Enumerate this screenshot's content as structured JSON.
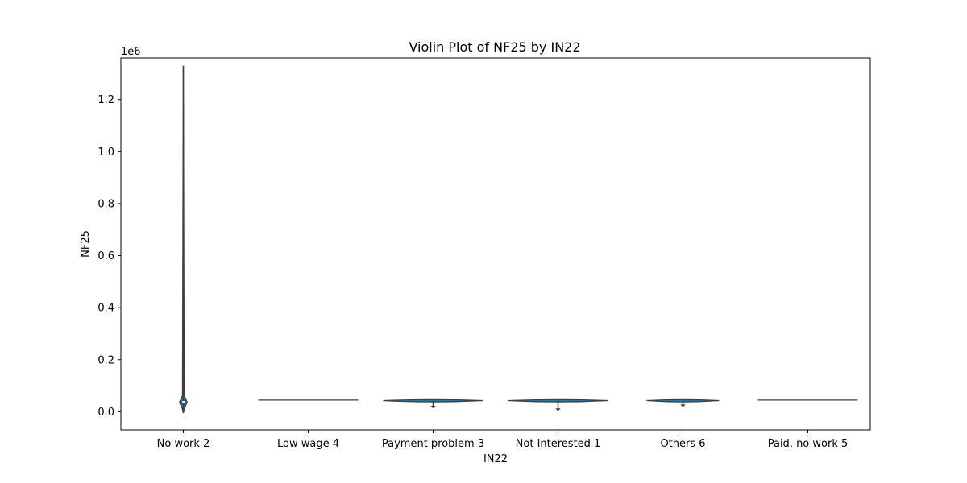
{
  "chart_data": {
    "type": "violin",
    "title": "Violin Plot of NF25 by IN22",
    "xlabel": "IN22",
    "ylabel": "NF25",
    "y_offset_text": "1e6",
    "ylim": [
      -0.07,
      1.36
    ],
    "y_ticks": [
      0.0,
      0.2,
      0.4,
      0.6,
      0.8,
      1.0,
      1.2
    ],
    "y_tick_labels": [
      "0.0",
      "0.2",
      "0.4",
      "0.6",
      "0.8",
      "1.0",
      "1.2"
    ],
    "grid": false,
    "categories": [
      "No work 2",
      "Low wage 4",
      "Payment problem 3",
      "Not Interested 1",
      "Others 6",
      "Paid, no work 5"
    ],
    "violins": [
      {
        "min": -0.005,
        "max": 1.33,
        "q1": 0.03,
        "median": 0.037,
        "q3": 0.042,
        "width": 0.06
      },
      {
        "min": 0.045,
        "max": 0.045,
        "q1": 0.045,
        "median": 0.045,
        "q3": 0.045,
        "width": 0.8
      },
      {
        "min": 0.015,
        "max": 0.046,
        "q1": 0.041,
        "median": 0.043,
        "q3": 0.045,
        "width": 0.8
      },
      {
        "min": 0.005,
        "max": 0.046,
        "q1": 0.041,
        "median": 0.043,
        "q3": 0.045,
        "width": 0.8
      },
      {
        "min": 0.02,
        "max": 0.046,
        "q1": 0.041,
        "median": 0.043,
        "q3": 0.045,
        "width": 0.58
      },
      {
        "min": 0.045,
        "max": 0.045,
        "q1": 0.045,
        "median": 0.045,
        "q3": 0.045,
        "width": 0.8
      }
    ],
    "colors": {
      "violin_fill": "#3274a1",
      "edge": "#3f3f3f"
    }
  }
}
